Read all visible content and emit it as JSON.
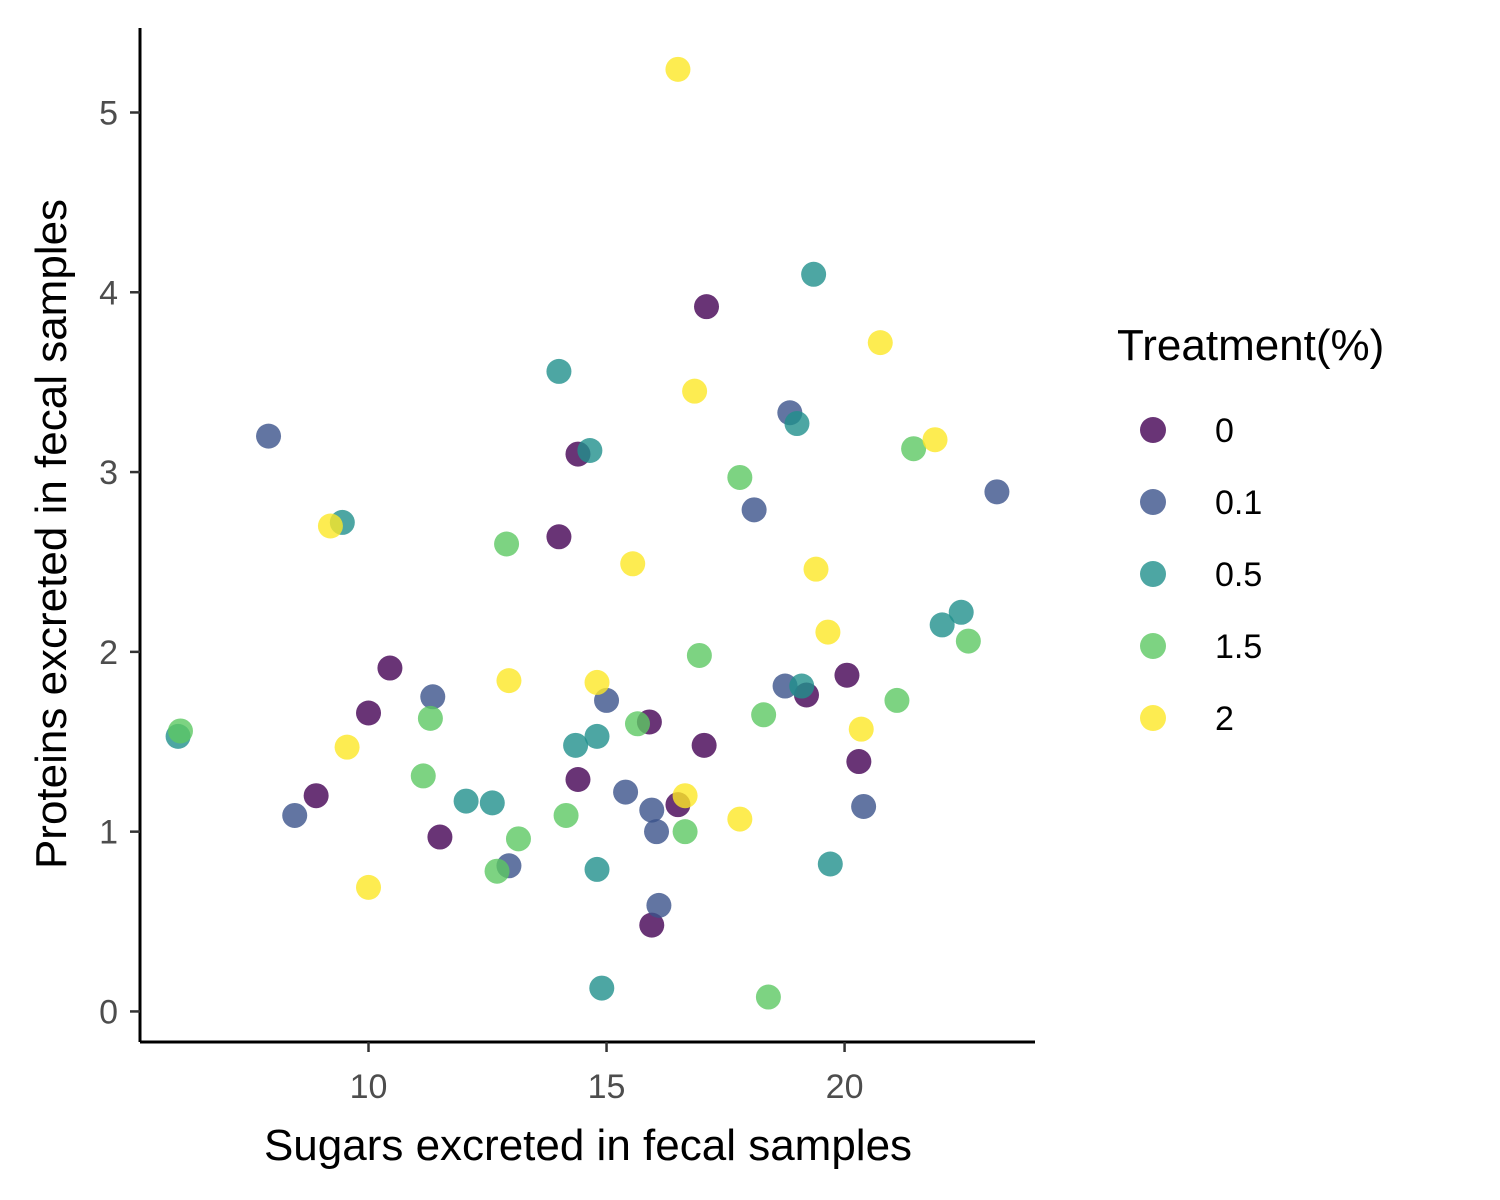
{
  "chart_data": {
    "type": "scatter",
    "xlabel": "Sugars excreted in fecal samples",
    "ylabel": "Proteins excreted in fecal samples",
    "xlim": [
      5.2,
      24
    ],
    "ylim": [
      -0.17,
      5.47
    ],
    "xticks": [
      10,
      15,
      20
    ],
    "yticks": [
      0,
      1,
      2,
      3,
      4,
      5
    ],
    "grid": false,
    "legend": {
      "title": "Treatment(%)",
      "position": "right"
    },
    "series": [
      {
        "name": "0",
        "color": "#440154",
        "points": [
          [
            17.1,
            3.92
          ],
          [
            14.4,
            3.1
          ],
          [
            14.0,
            2.64
          ],
          [
            10.45,
            1.91
          ],
          [
            10.0,
            1.66
          ],
          [
            8.9,
            1.2
          ],
          [
            11.5,
            0.97
          ],
          [
            14.4,
            1.29
          ],
          [
            15.9,
            1.61
          ],
          [
            17.05,
            1.48
          ],
          [
            16.5,
            1.15
          ],
          [
            15.95,
            0.48
          ],
          [
            20.05,
            1.87
          ],
          [
            19.2,
            1.76
          ],
          [
            20.3,
            1.39
          ]
        ]
      },
      {
        "name": "0.1",
        "color": "#3B528B",
        "points": [
          [
            7.9,
            3.2
          ],
          [
            18.85,
            3.33
          ],
          [
            18.1,
            2.79
          ],
          [
            23.2,
            2.89
          ],
          [
            11.35,
            1.75
          ],
          [
            8.45,
            1.09
          ],
          [
            15.0,
            1.73
          ],
          [
            15.4,
            1.22
          ],
          [
            15.95,
            1.12
          ],
          [
            16.05,
            1.0
          ],
          [
            12.95,
            0.81
          ],
          [
            16.1,
            0.59
          ],
          [
            18.75,
            1.81
          ],
          [
            20.4,
            1.14
          ]
        ]
      },
      {
        "name": "0.5",
        "color": "#21908C",
        "points": [
          [
            19.35,
            4.1
          ],
          [
            14.0,
            3.56
          ],
          [
            14.65,
            3.12
          ],
          [
            19.0,
            3.27
          ],
          [
            9.45,
            2.72
          ],
          [
            6.0,
            1.53
          ],
          [
            14.35,
            1.48
          ],
          [
            14.8,
            1.53
          ],
          [
            12.05,
            1.17
          ],
          [
            12.6,
            1.16
          ],
          [
            14.8,
            0.79
          ],
          [
            14.9,
            0.13
          ],
          [
            19.1,
            1.81
          ],
          [
            19.7,
            0.82
          ],
          [
            22.05,
            2.15
          ],
          [
            22.45,
            2.22
          ]
        ]
      },
      {
        "name": "1.5",
        "color": "#5DC863",
        "points": [
          [
            17.8,
            2.97
          ],
          [
            21.45,
            3.13
          ],
          [
            12.9,
            2.6
          ],
          [
            6.05,
            1.56
          ],
          [
            11.3,
            1.63
          ],
          [
            11.15,
            1.31
          ],
          [
            14.15,
            1.09
          ],
          [
            13.15,
            0.96
          ],
          [
            12.7,
            0.78
          ],
          [
            15.65,
            1.6
          ],
          [
            16.95,
            1.98
          ],
          [
            18.3,
            1.65
          ],
          [
            16.65,
            1.0
          ],
          [
            18.4,
            0.08
          ],
          [
            21.1,
            1.73
          ],
          [
            22.6,
            2.06
          ]
        ]
      },
      {
        "name": "2",
        "color": "#FDE725",
        "points": [
          [
            16.5,
            5.24
          ],
          [
            20.75,
            3.72
          ],
          [
            16.85,
            3.45
          ],
          [
            21.9,
            3.18
          ],
          [
            9.2,
            2.7
          ],
          [
            15.55,
            2.49
          ],
          [
            19.4,
            2.46
          ],
          [
            19.65,
            2.11
          ],
          [
            12.95,
            1.84
          ],
          [
            14.8,
            1.83
          ],
          [
            9.55,
            1.47
          ],
          [
            10.0,
            0.69
          ],
          [
            16.65,
            1.2
          ],
          [
            17.8,
            1.07
          ],
          [
            20.35,
            1.57
          ]
        ]
      }
    ]
  }
}
